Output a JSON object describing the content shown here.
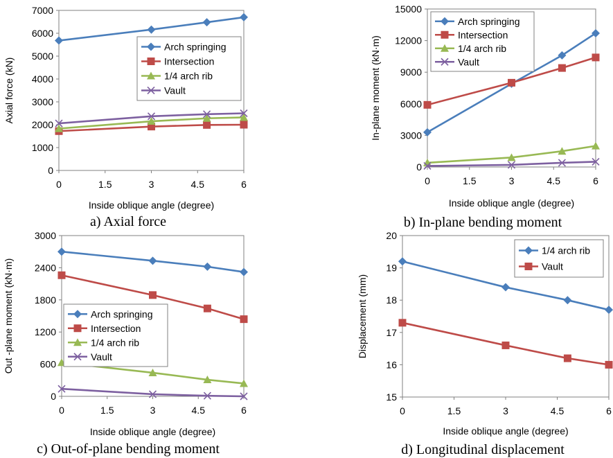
{
  "colors": {
    "arch_springing": "#4a7ebb",
    "intersection": "#be4b48",
    "quarter_rib": "#98b954",
    "vault": "#7d60a0"
  },
  "chart_data": [
    {
      "id": "a",
      "type": "line",
      "caption": "a) Axial force",
      "xlabel": "Inside oblique angle (degree)",
      "ylabel": "Axial force (kN)",
      "xlim": [
        0,
        6
      ],
      "ylim": [
        0,
        7000
      ],
      "xticks": [
        "0",
        "1.5",
        "3",
        "4.5",
        "6"
      ],
      "yticks": [
        "0",
        "1000",
        "2000",
        "3000",
        "4000",
        "5000",
        "6000",
        "7000"
      ],
      "legend_position": "right",
      "x": [
        0,
        3,
        4.8,
        6
      ],
      "series": [
        {
          "name": "Arch springing",
          "marker": "diamond",
          "color_key": "arch_springing",
          "values": [
            5680,
            6160,
            6480,
            6700
          ]
        },
        {
          "name": "Intersection",
          "marker": "square",
          "color_key": "intersection",
          "values": [
            1720,
            1920,
            1990,
            2000
          ]
        },
        {
          "name": "1/4 arch rib",
          "marker": "triangle",
          "color_key": "quarter_rib",
          "values": [
            1830,
            2150,
            2280,
            2320
          ]
        },
        {
          "name": "Vault",
          "marker": "x",
          "color_key": "vault",
          "values": [
            2060,
            2370,
            2460,
            2500
          ]
        }
      ]
    },
    {
      "id": "b",
      "type": "line",
      "caption": "b) In-plane bending moment",
      "xlabel": "Inside oblique angle (degree)",
      "ylabel": "In-plane moment (kN·m)",
      "xlim": [
        0,
        6
      ],
      "ylim": [
        0,
        15000
      ],
      "xticks": [
        "0",
        "1.5",
        "3",
        "4.5",
        "6"
      ],
      "yticks": [
        "0",
        "3000",
        "6000",
        "9000",
        "12000",
        "15000"
      ],
      "legend_position": "top-left",
      "x": [
        0,
        3,
        4.8,
        6
      ],
      "series": [
        {
          "name": "Arch springing",
          "marker": "diamond",
          "color_key": "arch_springing",
          "values": [
            3300,
            7900,
            10600,
            12700
          ]
        },
        {
          "name": "Intersection",
          "marker": "square",
          "color_key": "intersection",
          "values": [
            5900,
            8000,
            9400,
            10400
          ]
        },
        {
          "name": "1/4 arch rib",
          "marker": "triangle",
          "color_key": "quarter_rib",
          "values": [
            400,
            900,
            1500,
            2000
          ]
        },
        {
          "name": "Vault",
          "marker": "x",
          "color_key": "vault",
          "values": [
            100,
            200,
            400,
            500
          ]
        }
      ]
    },
    {
      "id": "c",
      "type": "line",
      "caption": "c) Out-of-plane bending moment",
      "xlabel": "Inside oblique angle (degree)",
      "ylabel": "Out -plane moment (kN·m)",
      "xlim": [
        0,
        6
      ],
      "ylim": [
        0,
        3000
      ],
      "xticks": [
        "0",
        "1.5",
        "3",
        "4.5",
        "6"
      ],
      "yticks": [
        "0",
        "600",
        "1200",
        "1800",
        "2400",
        "3000"
      ],
      "legend_position": "bottom-left",
      "x": [
        0,
        3,
        4.8,
        6
      ],
      "series": [
        {
          "name": "Arch springing",
          "marker": "diamond",
          "color_key": "arch_springing",
          "values": [
            2700,
            2530,
            2420,
            2320
          ]
        },
        {
          "name": "Intersection",
          "marker": "square",
          "color_key": "intersection",
          "values": [
            2260,
            1890,
            1640,
            1440
          ]
        },
        {
          "name": "1/4 arch rib",
          "marker": "triangle",
          "color_key": "quarter_rib",
          "values": [
            630,
            440,
            310,
            240
          ]
        },
        {
          "name": "Vault",
          "marker": "x",
          "color_key": "vault",
          "values": [
            140,
            40,
            10,
            0
          ]
        }
      ]
    },
    {
      "id": "d",
      "type": "line",
      "caption": "d) Longitudinal displacement",
      "xlabel": "Inside oblique angle (degree)",
      "ylabel": "Displacement (mm)",
      "xlim": [
        0,
        6
      ],
      "ylim": [
        15,
        20
      ],
      "xticks": [
        "0",
        "1.5",
        "3",
        "4.5",
        "6"
      ],
      "yticks": [
        "15",
        "16",
        "17",
        "18",
        "19",
        "20"
      ],
      "legend_position": "top-right",
      "x": [
        0,
        3,
        4.8,
        6
      ],
      "series": [
        {
          "name": "1/4 arch rib",
          "marker": "diamond",
          "color_key": "arch_springing",
          "values": [
            19.2,
            18.4,
            18.0,
            17.7
          ]
        },
        {
          "name": "Vault",
          "marker": "square",
          "color_key": "intersection",
          "values": [
            17.3,
            16.6,
            16.2,
            16.0
          ]
        }
      ]
    }
  ]
}
